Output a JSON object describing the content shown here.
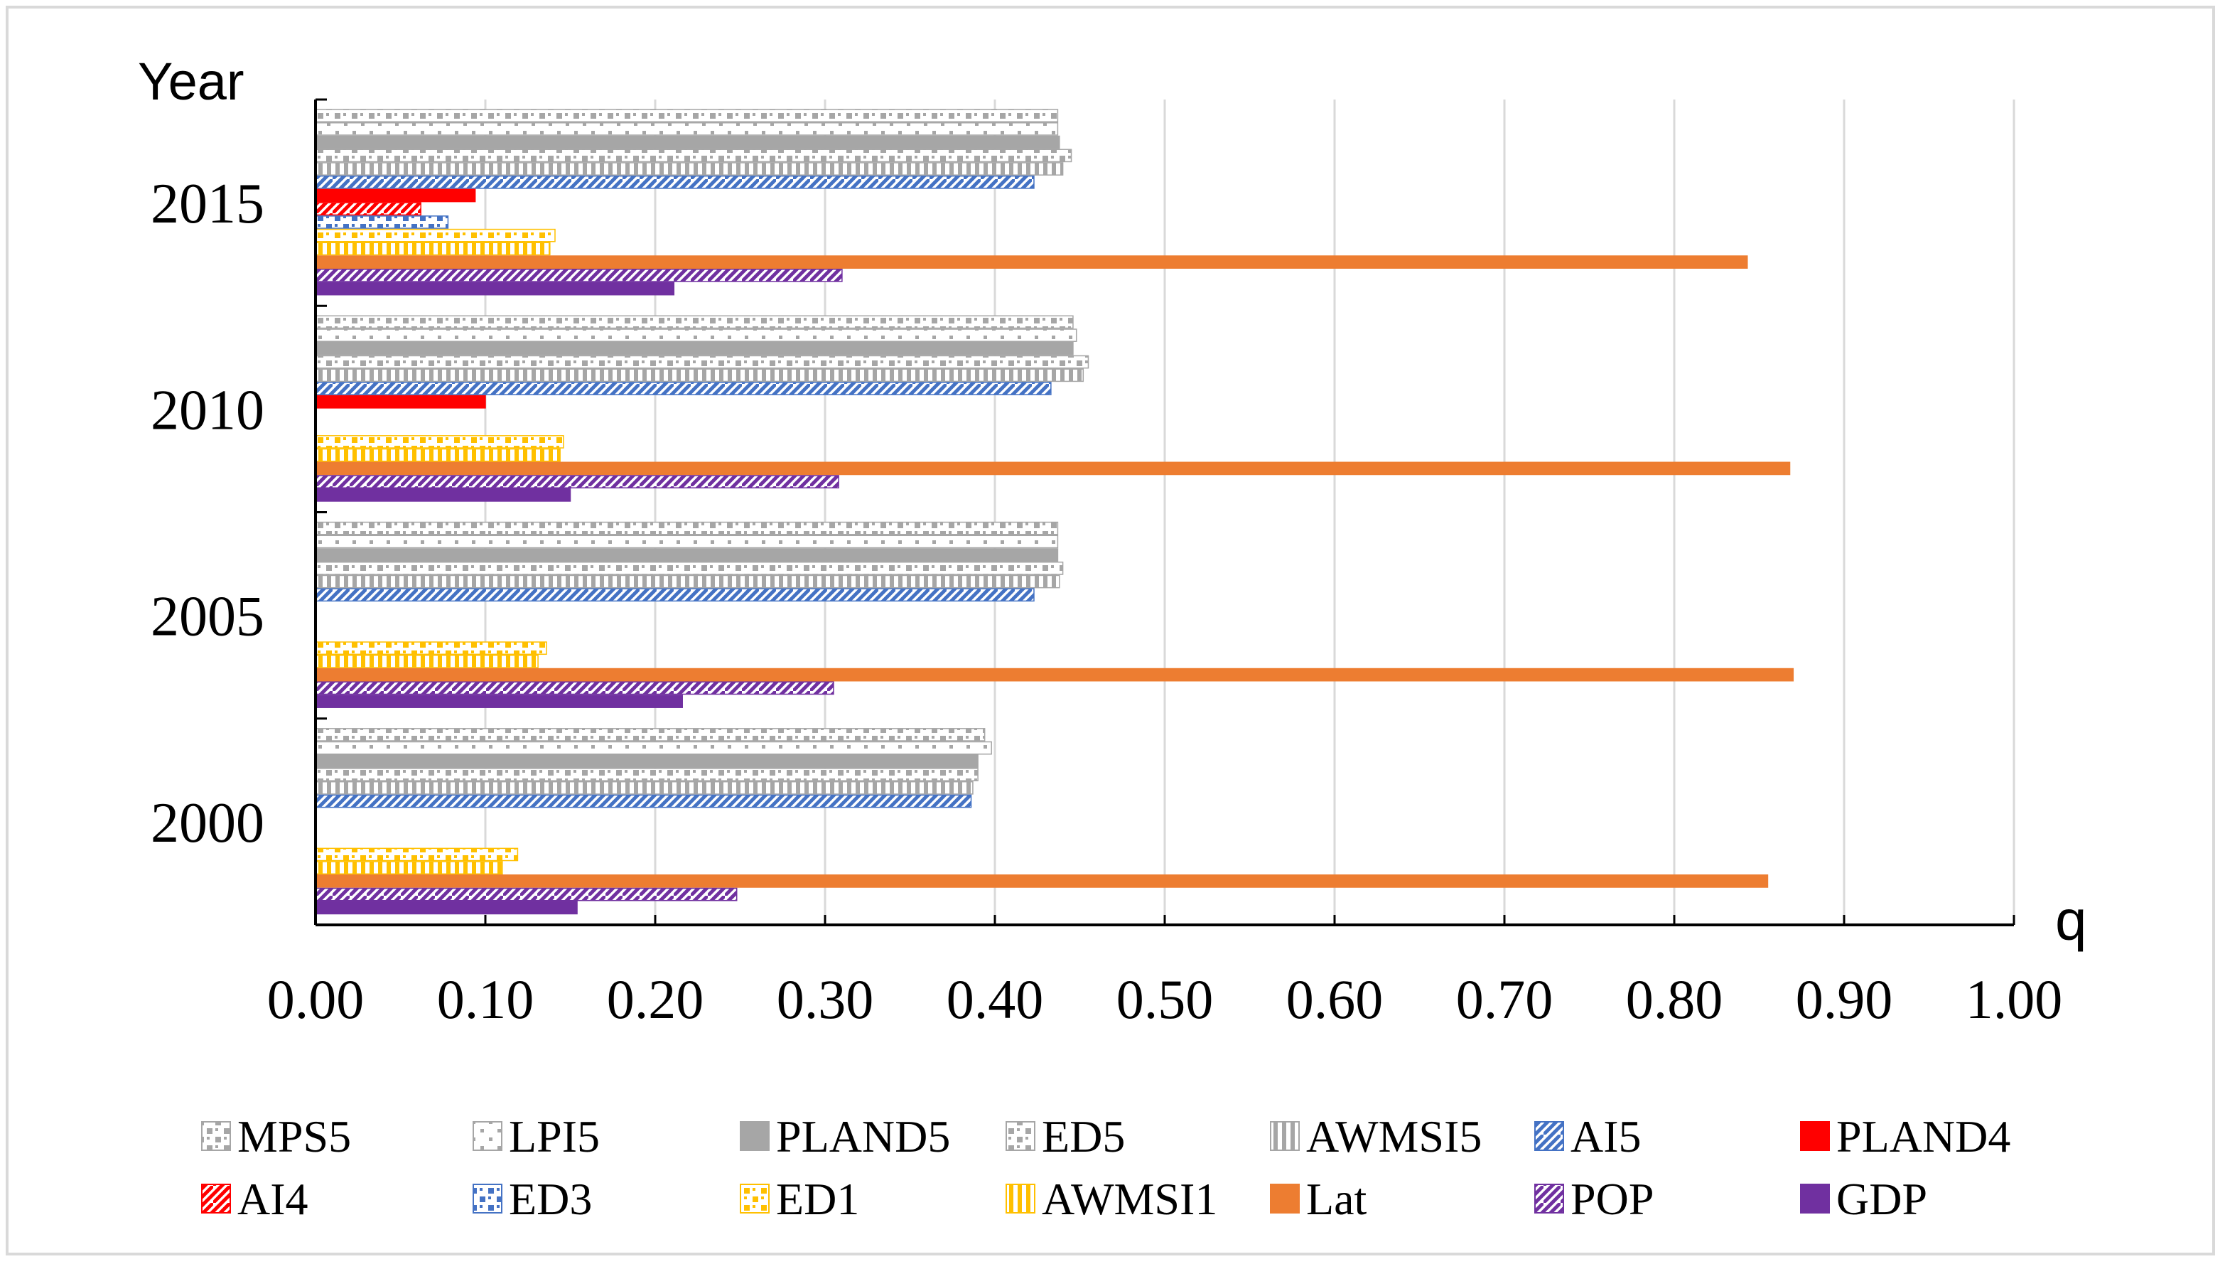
{
  "chart_data": {
    "type": "bar",
    "orientation": "horizontal",
    "ylabel": "Year",
    "xlabel": "q",
    "xlim": [
      0,
      1
    ],
    "xticks": [
      "0.00",
      "0.10",
      "0.20",
      "0.30",
      "0.40",
      "0.50",
      "0.60",
      "0.70",
      "0.80",
      "0.90",
      "1.00"
    ],
    "grid": "vertical",
    "legend_position": "bottom",
    "categories": [
      "2015",
      "2010",
      "2005",
      "2000"
    ],
    "series": [
      {
        "name": "MPS5",
        "pattern": "square-dots",
        "color": "#a6a6a6",
        "values": [
          0.437,
          0.446,
          0.437,
          0.394
        ]
      },
      {
        "name": "LPI5",
        "pattern": "dots-light",
        "color": "#a6a6a6",
        "values": [
          0.437,
          0.448,
          0.437,
          0.398
        ]
      },
      {
        "name": "PLAND5",
        "pattern": "solid",
        "color": "#a6a6a6",
        "values": [
          0.438,
          0.446,
          0.437,
          0.39
        ]
      },
      {
        "name": "ED5",
        "pattern": "square-dots",
        "color": "#a6a6a6",
        "values": [
          0.445,
          0.455,
          0.44,
          0.39
        ]
      },
      {
        "name": "AWMSI5",
        "pattern": "vertical",
        "color": "#a6a6a6",
        "values": [
          0.44,
          0.452,
          0.438,
          0.387
        ]
      },
      {
        "name": "AI5",
        "pattern": "diagonal",
        "color": "#4472c4",
        "values": [
          0.423,
          0.433,
          0.423,
          0.386
        ]
      },
      {
        "name": "PLAND4",
        "pattern": "solid",
        "color": "#ff0000",
        "values": [
          0.094,
          0.1,
          0.0,
          0.0
        ]
      },
      {
        "name": "AI4",
        "pattern": "diagonal",
        "color": "#ff0000",
        "values": [
          0.062,
          0.0,
          0.0,
          0.0
        ]
      },
      {
        "name": "ED3",
        "pattern": "square-dots",
        "color": "#4472c4",
        "values": [
          0.078,
          0.0,
          0.0,
          0.0
        ]
      },
      {
        "name": "ED1",
        "pattern": "square-dots",
        "color": "#ffc000",
        "values": [
          0.141,
          0.146,
          0.136,
          0.119
        ]
      },
      {
        "name": "AWMSI1",
        "pattern": "vertical",
        "color": "#ffc000",
        "values": [
          0.138,
          0.144,
          0.131,
          0.11
        ]
      },
      {
        "name": "Lat",
        "pattern": "solid",
        "color": "#ed7d31",
        "values": [
          0.843,
          0.868,
          0.87,
          0.855
        ]
      },
      {
        "name": "POP",
        "pattern": "diagonal",
        "color": "#7030a0",
        "values": [
          0.31,
          0.308,
          0.305,
          0.248
        ]
      },
      {
        "name": "GDP",
        "pattern": "solid",
        "color": "#7030a0",
        "values": [
          0.211,
          0.15,
          0.216,
          0.154
        ]
      }
    ]
  }
}
